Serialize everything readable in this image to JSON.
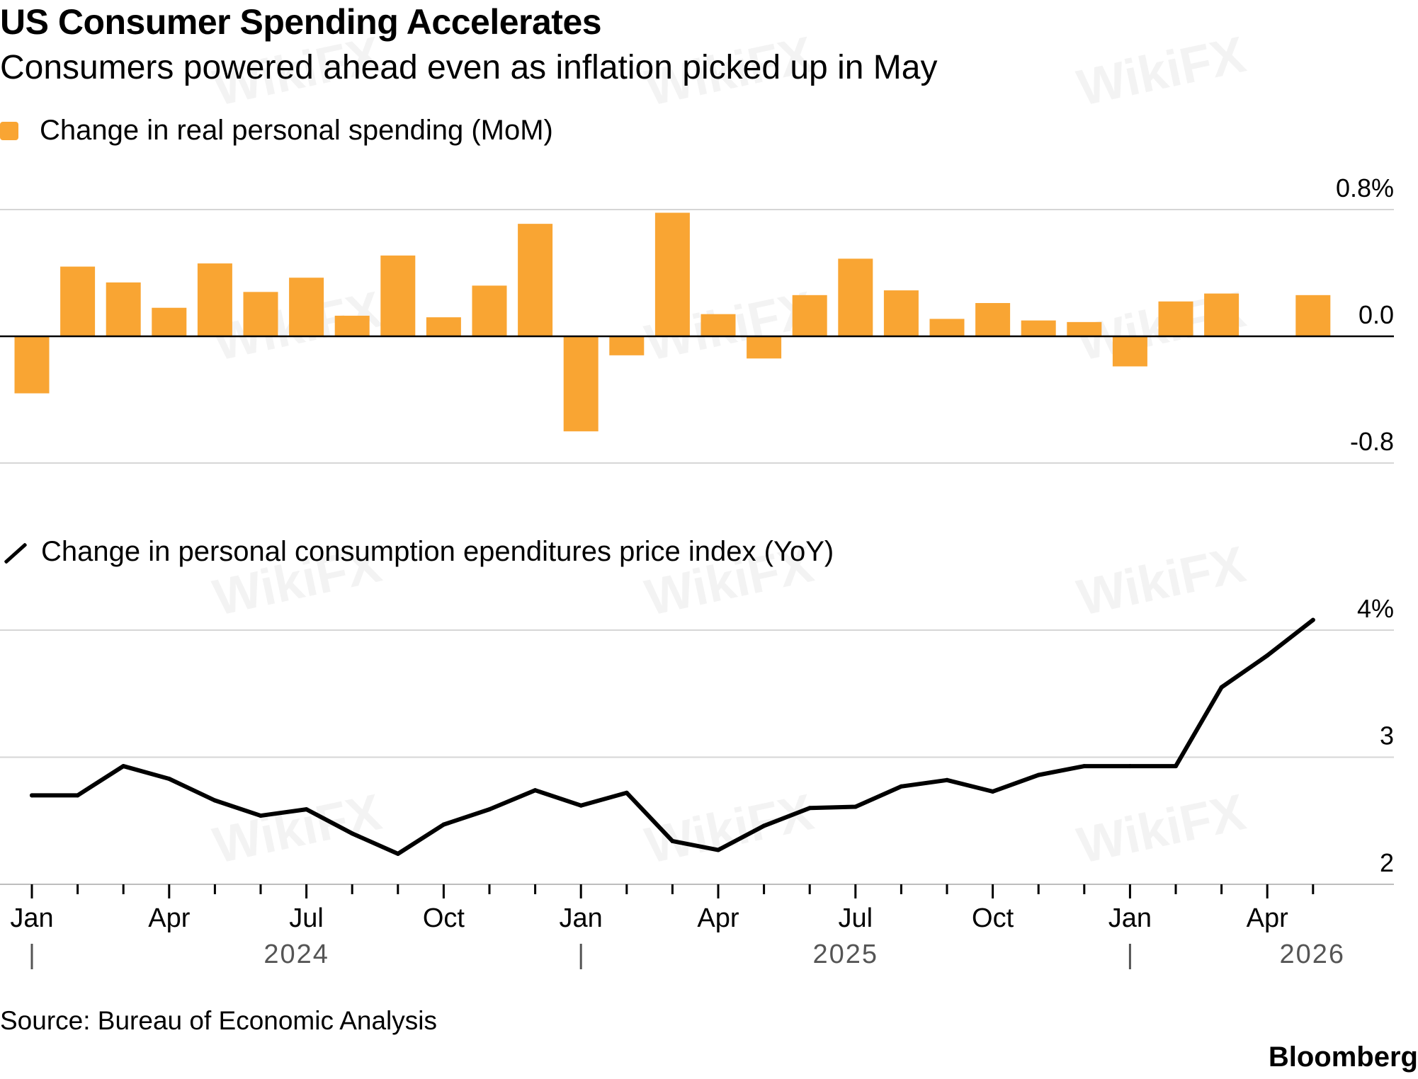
{
  "header": {
    "title": "US Consumer Spending Accelerates",
    "subtitle": "Consumers powered ahead even as inflation picked up in May"
  },
  "legend": {
    "spending": "Change in real personal spending (MoM)",
    "pce": "Change in personal consumption ependitures price index (YoY)"
  },
  "footer": {
    "source": "Source: Bureau of Economic Analysis",
    "brand": "Bloomberg"
  },
  "watermark": "WikiFX",
  "colors": {
    "bar": "#f9a533",
    "line": "#000000",
    "grid": "#d6d6d6",
    "axis": "#000000"
  },
  "chart_data": [
    {
      "type": "bar",
      "title": "Change in real personal spending (MoM)",
      "x": [
        "2024-01",
        "2024-02",
        "2024-03",
        "2024-04",
        "2024-05",
        "2024-06",
        "2024-07",
        "2024-08",
        "2024-09",
        "2024-10",
        "2024-11",
        "2024-12",
        "2025-01",
        "2025-02",
        "2025-03",
        "2025-04",
        "2025-05",
        "2025-06",
        "2025-07",
        "2025-08",
        "2025-09",
        "2025-10",
        "2025-11",
        "2025-12",
        "2026-01",
        "2026-02",
        "2026-03",
        "2026-04",
        "2026-05"
      ],
      "values": [
        -0.36,
        0.44,
        0.34,
        0.18,
        0.46,
        0.28,
        0.37,
        0.13,
        0.51,
        0.12,
        0.32,
        0.71,
        -0.6,
        -0.12,
        0.78,
        0.14,
        -0.14,
        0.26,
        0.49,
        0.29,
        0.11,
        0.21,
        0.1,
        0.09,
        -0.19,
        0.22,
        0.27,
        0.0,
        0.26
      ],
      "ylim": [
        -0.8,
        0.8
      ],
      "yticks": [
        "0.8%",
        "0.0",
        "-0.8"
      ]
    },
    {
      "type": "line",
      "title": "Change in personal consumption ependitures price index (YoY)",
      "x": [
        "2024-01",
        "2024-02",
        "2024-03",
        "2024-04",
        "2024-05",
        "2024-06",
        "2024-07",
        "2024-08",
        "2024-09",
        "2024-10",
        "2024-11",
        "2024-12",
        "2025-01",
        "2025-02",
        "2025-03",
        "2025-04",
        "2025-05",
        "2025-06",
        "2025-07",
        "2025-08",
        "2025-09",
        "2025-10",
        "2025-11",
        "2025-12",
        "2026-01",
        "2026-02",
        "2026-03",
        "2026-04",
        "2026-05"
      ],
      "values": [
        2.7,
        2.7,
        2.93,
        2.83,
        2.66,
        2.54,
        2.59,
        2.4,
        2.24,
        2.47,
        2.59,
        2.74,
        2.62,
        2.72,
        2.34,
        2.27,
        2.46,
        2.6,
        2.61,
        2.77,
        2.82,
        2.73,
        2.86,
        2.93,
        2.93,
        2.93,
        3.55,
        3.8,
        4.08
      ],
      "ylim": [
        2,
        4
      ],
      "yticks": [
        "4%",
        "3",
        "2"
      ]
    }
  ],
  "xaxis": {
    "month_labels": [
      {
        "i": 0,
        "label": "Jan"
      },
      {
        "i": 3,
        "label": "Apr"
      },
      {
        "i": 6,
        "label": "Jul"
      },
      {
        "i": 9,
        "label": "Oct"
      },
      {
        "i": 12,
        "label": "Jan"
      },
      {
        "i": 15,
        "label": "Apr"
      },
      {
        "i": 18,
        "label": "Jul"
      },
      {
        "i": 21,
        "label": "Oct"
      },
      {
        "i": 24,
        "label": "Jan"
      },
      {
        "i": 27,
        "label": "Apr"
      }
    ],
    "years": [
      {
        "i": 6,
        "label": "2024"
      },
      {
        "i": 18,
        "label": "2025"
      },
      {
        "i": 28.2,
        "label": "2026"
      }
    ]
  }
}
